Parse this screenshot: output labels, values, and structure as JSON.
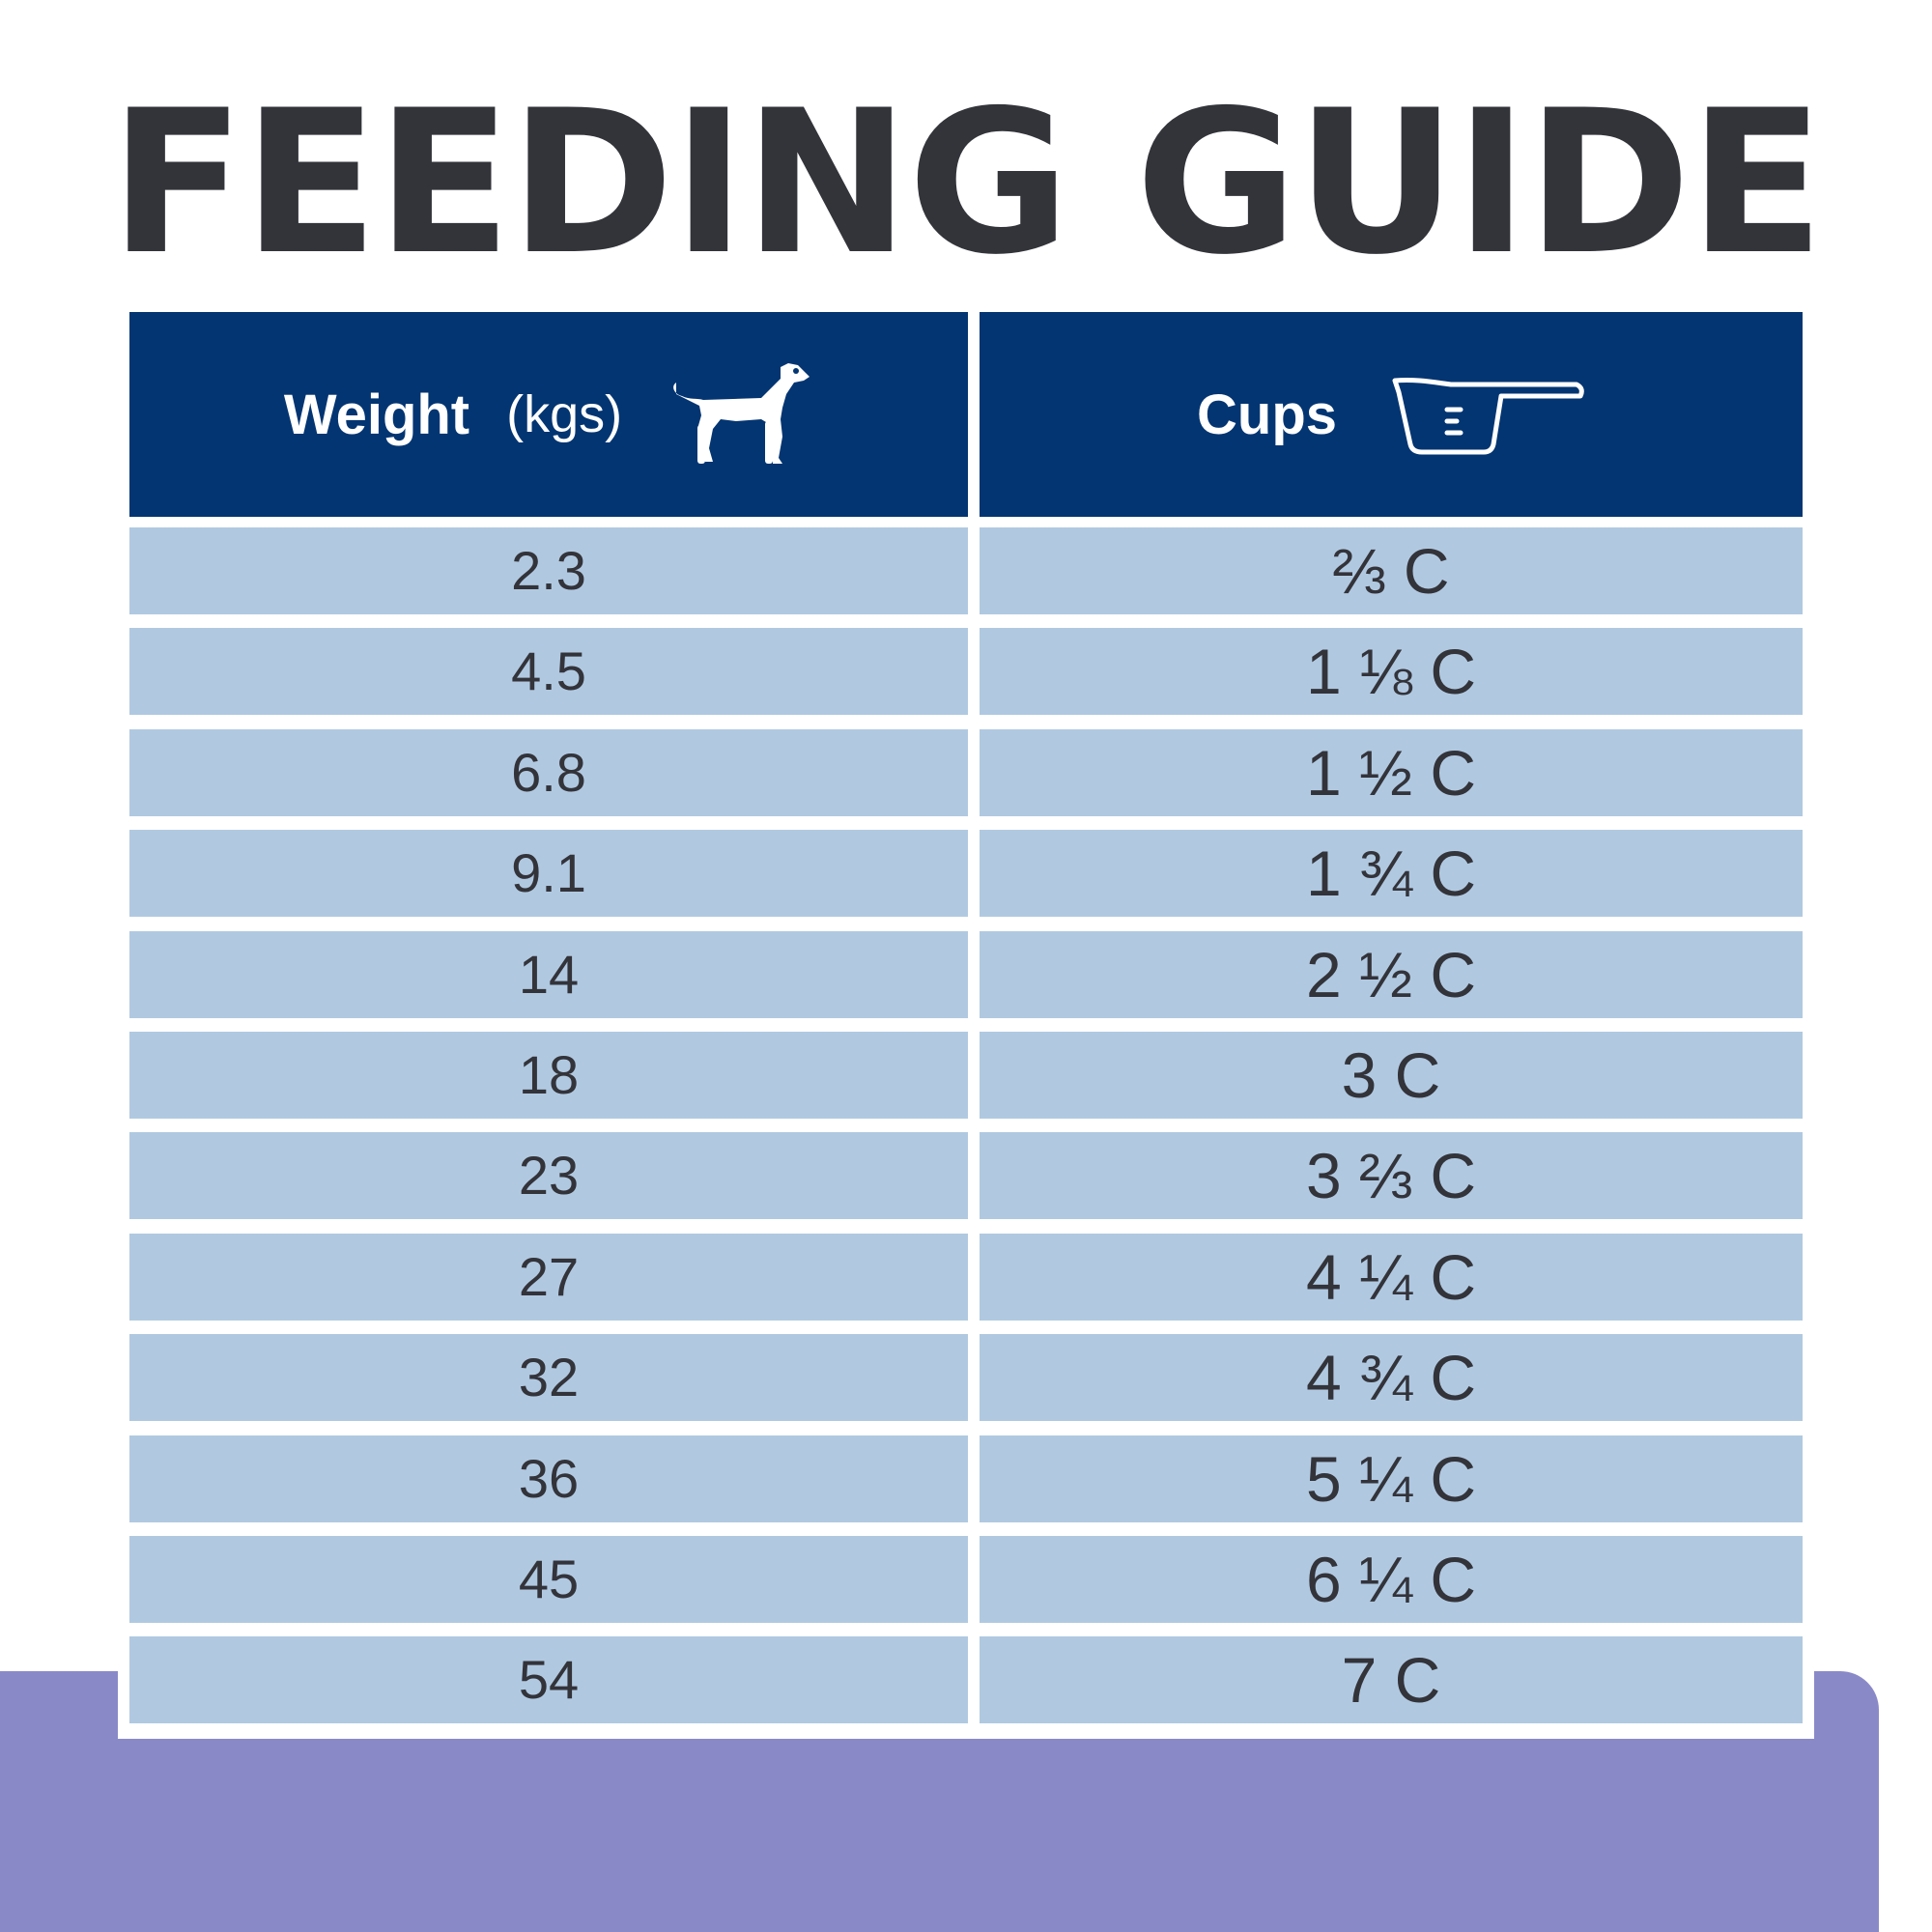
{
  "colors": {
    "title": "#33343a",
    "header_bg": "#033572",
    "row_bg": "#b0c9e1",
    "accent_band": "#8a89c8",
    "text": "#33333a"
  },
  "title": "FEEDING GUIDE",
  "header": {
    "weight_label": "Weight",
    "weight_unit": "(kgs)",
    "weight_icon": "dog-icon",
    "cups_label": "Cups",
    "cups_icon": "measuring-cup-icon"
  },
  "rows": [
    {
      "weight": "2.3",
      "cups": "⅔ C"
    },
    {
      "weight": "4.5",
      "cups": "1 ⅛ C"
    },
    {
      "weight": "6.8",
      "cups": "1 ½ C"
    },
    {
      "weight": "9.1",
      "cups": "1 ¾ C"
    },
    {
      "weight": "14",
      "cups": "2 ½ C"
    },
    {
      "weight": "18",
      "cups": "3 C"
    },
    {
      "weight": "23",
      "cups": "3 ⅔ C"
    },
    {
      "weight": "27",
      "cups": "4 ¼ C"
    },
    {
      "weight": "32",
      "cups": "4 ¾ C"
    },
    {
      "weight": "36",
      "cups": "5 ¼ C"
    },
    {
      "weight": "45",
      "cups": "6 ¼ C"
    },
    {
      "weight": "54",
      "cups": "7 C"
    }
  ]
}
